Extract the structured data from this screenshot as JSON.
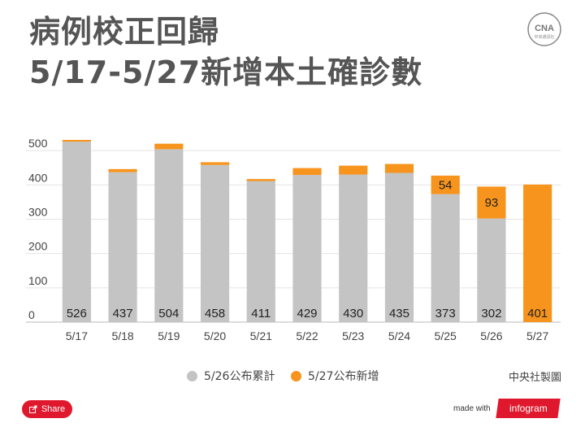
{
  "header": {
    "title_line1": "病例校正回歸",
    "title_line2": "5/17-5/27新增本土確診數"
  },
  "logo": {
    "text": "CNA",
    "subtext": "中央通訊社"
  },
  "chart_data": {
    "type": "bar",
    "stacked": true,
    "categories": [
      "5/17",
      "5/18",
      "5/19",
      "5/20",
      "5/21",
      "5/22",
      "5/23",
      "5/24",
      "5/25",
      "5/26",
      "5/27"
    ],
    "series": [
      {
        "name": "5/26公布累計",
        "color": "#c4c4c4",
        "values": [
          526,
          437,
          504,
          458,
          411,
          429,
          430,
          435,
          373,
          302,
          0
        ]
      },
      {
        "name": "5/27公布新增",
        "color": "#f7941d",
        "values": [
          5,
          9,
          16,
          8,
          6,
          20,
          26,
          26,
          54,
          93,
          401
        ]
      }
    ],
    "data_labels": {
      "base": [
        "526",
        "437",
        "504",
        "458",
        "411",
        "429",
        "430",
        "435",
        "373",
        "302",
        "401"
      ],
      "increment": [
        "",
        "",
        "",
        "",
        "",
        "",
        "",
        "",
        "54",
        "93",
        ""
      ]
    },
    "yticks": [
      0,
      100,
      200,
      300,
      400,
      500
    ],
    "ylim": [
      0,
      550
    ],
    "grid": true,
    "legend_position": "bottom"
  },
  "legend": {
    "items": [
      {
        "label": "5/26公布累計",
        "color": "#c4c4c4"
      },
      {
        "label": "5/27公布新增",
        "color": "#f7941d"
      }
    ]
  },
  "source": "中央社製圖",
  "footer": {
    "share_label": "Share",
    "made_with": "made with",
    "brand": "infogram"
  }
}
